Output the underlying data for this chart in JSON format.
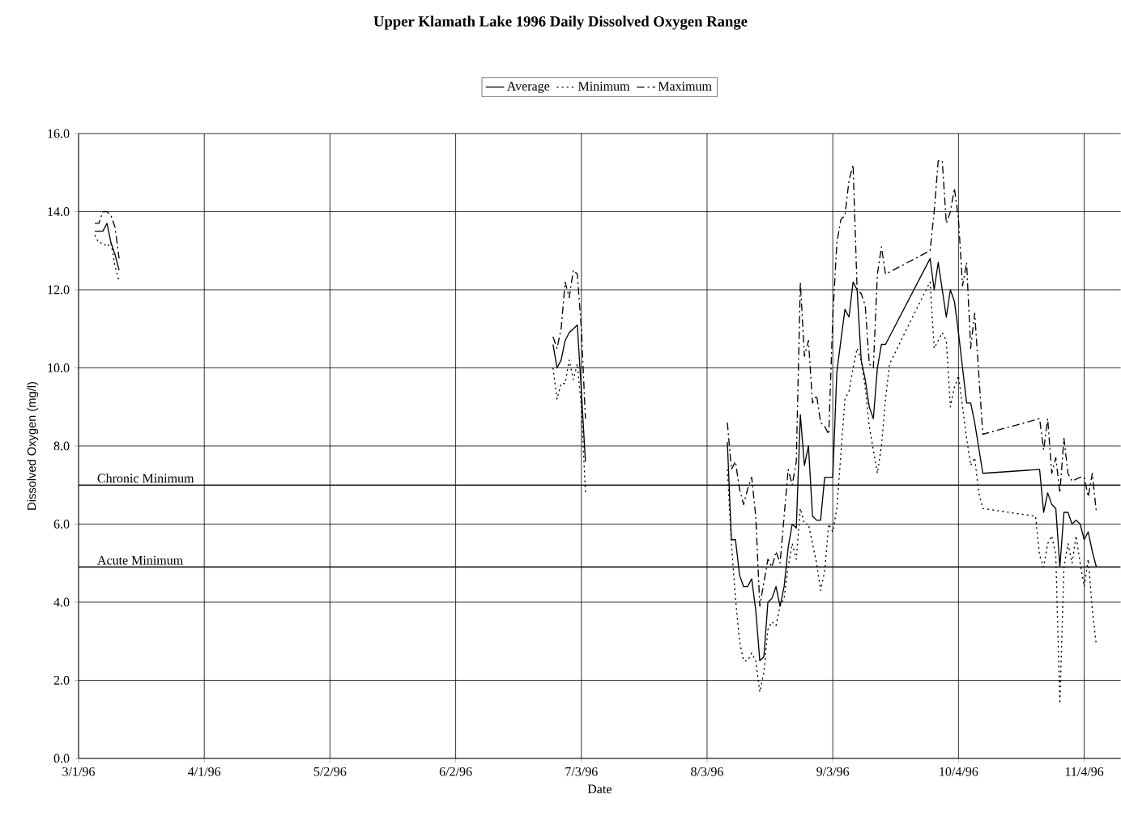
{
  "chart_data": {
    "type": "line",
    "title": "Upper Klamath Lake 1996 Daily Dissolved Oxygen Range",
    "xlabel": "Date",
    "ylabel": "Dissolved Oxygen (mg/l)",
    "xlim": [
      "1996-03-01",
      "1996-11-13"
    ],
    "xticks": [
      {
        "value": "1996-03-01",
        "label": "3/1/96"
      },
      {
        "value": "1996-04-01",
        "label": "4/1/96"
      },
      {
        "value": "1996-05-02",
        "label": "5/2/96"
      },
      {
        "value": "1996-06-02",
        "label": "6/2/96"
      },
      {
        "value": "1996-07-03",
        "label": "7/3/96"
      },
      {
        "value": "1996-08-03",
        "label": "8/3/96"
      },
      {
        "value": "1996-09-03",
        "label": "9/3/96"
      },
      {
        "value": "1996-10-04",
        "label": "10/4/96"
      },
      {
        "value": "1996-11-04",
        "label": "11/4/96"
      }
    ],
    "ylim": [
      0,
      16
    ],
    "yticks": [
      {
        "value": 0,
        "label": "0.0"
      },
      {
        "value": 2,
        "label": "2.0"
      },
      {
        "value": 4,
        "label": "4.0"
      },
      {
        "value": 6,
        "label": "6.0"
      },
      {
        "value": 8,
        "label": "8.0"
      },
      {
        "value": 10,
        "label": "10.0"
      },
      {
        "value": 12,
        "label": "12.0"
      },
      {
        "value": 14,
        "label": "14.0"
      },
      {
        "value": 16,
        "label": "16.0"
      }
    ],
    "grid": true,
    "legend": "top",
    "ref_lines": [
      {
        "axis": "y",
        "value": 7.0,
        "label": "Chronic Minimum"
      },
      {
        "axis": "y",
        "value": 4.9,
        "label": "Acute Minimum"
      }
    ],
    "series": [
      {
        "name": "Average",
        "color": "#000000",
        "line_style": "solid",
        "x": [
          "1996-03-05",
          "1996-03-06",
          "1996-03-07",
          "1996-03-08",
          "1996-03-09",
          "1996-03-10",
          "1996-03-11",
          "1996-05-01",
          "1996-06-26",
          "1996-06-27",
          "1996-06-28",
          "1996-06-29",
          "1996-06-30",
          "1996-07-01",
          "1996-07-02",
          "1996-07-03",
          "1996-07-04",
          "1996-07-20",
          "1996-08-08",
          "1996-08-09",
          "1996-08-10",
          "1996-08-11",
          "1996-08-12",
          "1996-08-13",
          "1996-08-14",
          "1996-08-15",
          "1996-08-16",
          "1996-08-17",
          "1996-08-18",
          "1996-08-19",
          "1996-08-20",
          "1996-08-21",
          "1996-08-22",
          "1996-08-23",
          "1996-08-24",
          "1996-08-25",
          "1996-08-26",
          "1996-08-27",
          "1996-08-28",
          "1996-08-29",
          "1996-08-30",
          "1996-08-31",
          "1996-09-01",
          "1996-09-02",
          "1996-09-03",
          "1996-09-04",
          "1996-09-05",
          "1996-09-06",
          "1996-09-07",
          "1996-09-08",
          "1996-09-09",
          "1996-09-10",
          "1996-09-11",
          "1996-09-12",
          "1996-09-13",
          "1996-09-14",
          "1996-09-15",
          "1996-09-16",
          "1996-09-27",
          "1996-09-28",
          "1996-09-29",
          "1996-10-01",
          "1996-10-02",
          "1996-10-03",
          "1996-10-04",
          "1996-10-05",
          "1996-10-06",
          "1996-10-07",
          "1996-10-08",
          "1996-10-10",
          "1996-10-24",
          "1996-10-25",
          "1996-10-26",
          "1996-10-27",
          "1996-10-28",
          "1996-10-29",
          "1996-10-30",
          "1996-10-31",
          "1996-11-01",
          "1996-11-02",
          "1996-11-03",
          "1996-11-04",
          "1996-11-05",
          "1996-11-06",
          "1996-11-07"
        ],
        "values": [
          13.5,
          13.5,
          13.5,
          13.7,
          13.2,
          12.9,
          12.5,
          null,
          10.6,
          10.0,
          10.2,
          10.7,
          10.9,
          11.0,
          11.1,
          9.4,
          7.6,
          null,
          8.1,
          5.6,
          5.6,
          4.7,
          4.4,
          4.4,
          4.6,
          3.8,
          2.5,
          2.6,
          4.0,
          4.1,
          4.4,
          3.9,
          4.4,
          5.4,
          6.0,
          5.9,
          8.8,
          7.5,
          8.0,
          6.2,
          6.1,
          6.1,
          7.2,
          7.2,
          7.2,
          9.9,
          10.7,
          11.5,
          11.3,
          12.2,
          12.0,
          10.2,
          9.7,
          9.0,
          8.7,
          10.0,
          10.6,
          10.6,
          12.8,
          12.0,
          12.7,
          11.3,
          12.0,
          11.7,
          10.9,
          10.0,
          9.1,
          9.1,
          8.6,
          7.3,
          7.4,
          6.3,
          6.8,
          6.5,
          6.4,
          4.9,
          6.3,
          6.3,
          6.0,
          6.1,
          6.0,
          5.6,
          5.8,
          5.3,
          4.9
        ]
      },
      {
        "name": "Minimum",
        "color": "#000000",
        "line_style": "dotted",
        "x": [
          "1996-03-05",
          "1996-03-06",
          "1996-03-07",
          "1996-03-08",
          "1996-03-09",
          "1996-03-10",
          "1996-03-11",
          "1996-05-01",
          "1996-06-26",
          "1996-06-27",
          "1996-06-28",
          "1996-06-29",
          "1996-06-30",
          "1996-07-01",
          "1996-07-02",
          "1996-07-03",
          "1996-07-04",
          "1996-07-20",
          "1996-08-08",
          "1996-08-09",
          "1996-08-10",
          "1996-08-11",
          "1996-08-12",
          "1996-08-13",
          "1996-08-14",
          "1996-08-15",
          "1996-08-16",
          "1996-08-17",
          "1996-08-18",
          "1996-08-19",
          "1996-08-20",
          "1996-08-21",
          "1996-08-22",
          "1996-08-23",
          "1996-08-24",
          "1996-08-25",
          "1996-08-26",
          "1996-08-27",
          "1996-08-28",
          "1996-08-29",
          "1996-08-30",
          "1996-08-31",
          "1996-09-01",
          "1996-09-02",
          "1996-09-03",
          "1996-09-04",
          "1996-09-05",
          "1996-09-06",
          "1996-09-07",
          "1996-09-08",
          "1996-09-09",
          "1996-09-10",
          "1996-09-11",
          "1996-09-12",
          "1996-09-13",
          "1996-09-14",
          "1996-09-15",
          "1996-09-16",
          "1996-09-17",
          "1996-09-26",
          "1996-09-27",
          "1996-09-28",
          "1996-09-29",
          "1996-09-30",
          "1996-10-01",
          "1996-10-02",
          "1996-10-03",
          "1996-10-04",
          "1996-10-05",
          "1996-10-06",
          "1996-10-07",
          "1996-10-08",
          "1996-10-09",
          "1996-10-10",
          "1996-10-23",
          "1996-10-24",
          "1996-10-25",
          "1996-10-26",
          "1996-10-27",
          "1996-10-28",
          "1996-10-29",
          "1996-10-30",
          "1996-10-31",
          "1996-11-01",
          "1996-11-02",
          "1996-11-03",
          "1996-11-04",
          "1996-11-05",
          "1996-11-06",
          "1996-11-07"
        ],
        "values": [
          13.4,
          13.2,
          13.2,
          13.1,
          13.2,
          12.6,
          12.2,
          null,
          10.0,
          9.2,
          9.6,
          9.6,
          10.2,
          9.7,
          10.1,
          9.0,
          6.8,
          null,
          7.4,
          5.5,
          4.1,
          3.0,
          2.5,
          2.5,
          2.7,
          2.5,
          1.7,
          2.2,
          3.3,
          3.5,
          3.4,
          3.9,
          4.1,
          4.9,
          5.5,
          5.1,
          6.4,
          6.0,
          6.0,
          5.5,
          5.0,
          4.3,
          4.8,
          6.0,
          5.8,
          6.4,
          7.8,
          9.2,
          9.4,
          10.0,
          10.5,
          10.2,
          9.5,
          8.5,
          7.9,
          7.3,
          8.0,
          9.2,
          10.1,
          12.0,
          12.2,
          10.5,
          10.7,
          10.9,
          10.7,
          9.0,
          9.5,
          9.8,
          9.0,
          8.2,
          7.5,
          7.7,
          6.8,
          6.4,
          6.2,
          5.2,
          4.9,
          5.5,
          5.7,
          5.2,
          1.4,
          4.9,
          5.5,
          5.0,
          5.7,
          5.0,
          4.4,
          5.1,
          3.8,
          2.9
        ]
      },
      {
        "name": "Maximum",
        "color": "#000000",
        "line_style": "dashed",
        "x": [
          "1996-03-05",
          "1996-03-06",
          "1996-03-07",
          "1996-03-08",
          "1996-03-09",
          "1996-03-10",
          "1996-03-11",
          "1996-05-01",
          "1996-06-26",
          "1996-06-27",
          "1996-06-28",
          "1996-06-29",
          "1996-06-30",
          "1996-07-01",
          "1996-07-02",
          "1996-07-03",
          "1996-07-04",
          "1996-07-20",
          "1996-08-08",
          "1996-08-09",
          "1996-08-10",
          "1996-08-11",
          "1996-08-12",
          "1996-08-13",
          "1996-08-14",
          "1996-08-15",
          "1996-08-16",
          "1996-08-17",
          "1996-08-18",
          "1996-08-19",
          "1996-08-20",
          "1996-08-21",
          "1996-08-22",
          "1996-08-23",
          "1996-08-24",
          "1996-08-25",
          "1996-08-26",
          "1996-08-27",
          "1996-08-28",
          "1996-08-29",
          "1996-08-30",
          "1996-08-31",
          "1996-09-01",
          "1996-09-02",
          "1996-09-03",
          "1996-09-04",
          "1996-09-05",
          "1996-09-06",
          "1996-09-07",
          "1996-09-08",
          "1996-09-09",
          "1996-09-10",
          "1996-09-11",
          "1996-09-12",
          "1996-09-13",
          "1996-09-14",
          "1996-09-15",
          "1996-09-16",
          "1996-09-27",
          "1996-09-28",
          "1996-09-29",
          "1996-09-30",
          "1996-10-01",
          "1996-10-02",
          "1996-10-03",
          "1996-10-04",
          "1996-10-05",
          "1996-10-06",
          "1996-10-07",
          "1996-10-08",
          "1996-10-10",
          "1996-10-24",
          "1996-10-25",
          "1996-10-26",
          "1996-10-27",
          "1996-10-28",
          "1996-10-29",
          "1996-10-30",
          "1996-10-31",
          "1996-11-01",
          "1996-11-03",
          "1996-11-04",
          "1996-11-05",
          "1996-11-06",
          "1996-11-07"
        ],
        "values": [
          13.7,
          13.7,
          14.0,
          14.0,
          13.9,
          13.6,
          12.8,
          null,
          10.8,
          10.5,
          11.0,
          12.2,
          11.8,
          12.5,
          12.4,
          11.0,
          8.7,
          null,
          8.6,
          7.4,
          7.6,
          6.9,
          6.5,
          6.9,
          7.2,
          6.2,
          3.9,
          4.5,
          5.1,
          4.9,
          5.3,
          5.0,
          6.2,
          7.4,
          7.0,
          7.6,
          12.2,
          10.3,
          10.7,
          9.1,
          9.3,
          8.6,
          8.5,
          8.3,
          11.3,
          13.2,
          13.8,
          13.9,
          14.8,
          15.2,
          12.0,
          11.9,
          11.6,
          10.1,
          10.0,
          12.4,
          13.1,
          12.4,
          13.0,
          14.0,
          15.3,
          15.3,
          13.7,
          14.0,
          14.6,
          13.8,
          12.1,
          12.7,
          10.5,
          11.4,
          8.3,
          8.7,
          7.9,
          8.7,
          7.3,
          7.7,
          6.8,
          8.2,
          7.3,
          7.1,
          7.2,
          7.2,
          6.7,
          7.3,
          6.3
        ]
      }
    ]
  }
}
